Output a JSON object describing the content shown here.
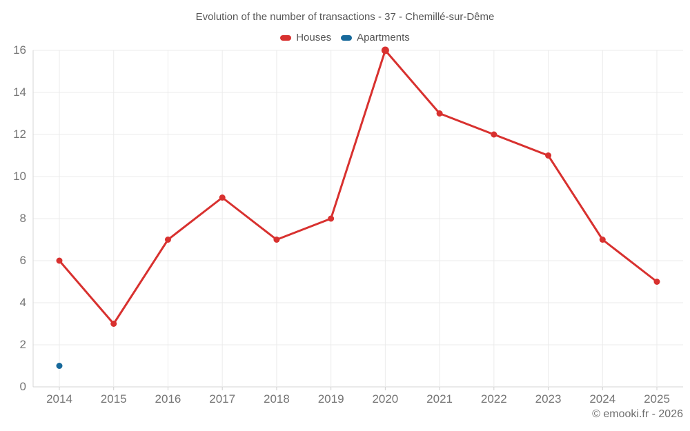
{
  "chart_data": {
    "type": "line",
    "title": "Evolution of the number of transactions - 37 - Chemillé-sur-Dême",
    "categories": [
      "2014",
      "2015",
      "2016",
      "2017",
      "2018",
      "2019",
      "2020",
      "2021",
      "2022",
      "2023",
      "2024",
      "2025"
    ],
    "series": [
      {
        "name": "Houses",
        "color": "#d8312f",
        "values": [
          6,
          3,
          7,
          9,
          7,
          8,
          16,
          13,
          12,
          11,
          7,
          5
        ]
      },
      {
        "name": "Apartments",
        "color": "#17699b",
        "values": [
          1,
          null,
          null,
          null,
          null,
          null,
          null,
          null,
          null,
          null,
          null,
          null
        ]
      }
    ],
    "xlabel": "",
    "ylabel": "",
    "ylim": [
      0,
      16
    ],
    "ytick_step": 2,
    "grid": true,
    "legend_position": "top"
  },
  "legend": {
    "items": [
      {
        "label": "Houses",
        "color": "#d8312f"
      },
      {
        "label": "Apartments",
        "color": "#17699b"
      }
    ]
  },
  "footer": {
    "copyright": "© emooki.fr - 2026"
  }
}
